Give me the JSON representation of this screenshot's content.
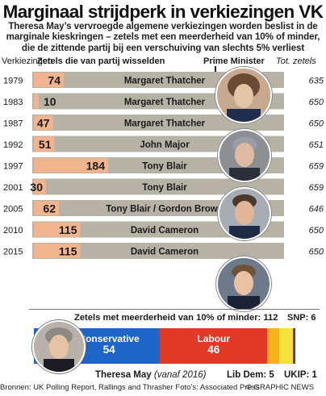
{
  "title": "Marginaal strijdperk in verkiezingen VK",
  "subtitle_lines": [
    "Theresa May’s vervroegde algemene verkiezingen worden beslist in de",
    "marginale kieskringen – zetels met een meerderheid van 10% of minder,",
    "die de zittende partij bij een verschuiving van slechts 5% verliest"
  ],
  "headers": {
    "elections": "Verkiezingen",
    "seats_changed": "Zetels die van partij wisselden",
    "pm": "Prime Minister",
    "total": "Tot. zetels"
  },
  "colors": {
    "bar_track": "#b6b3a6",
    "bar_fill": "#f0b48e",
    "conservative": "#1f64c8",
    "labour": "#e23a25",
    "libdem": "#f6b21b",
    "snp": "#f6e03a",
    "ukip": "#7a2a8c"
  },
  "chart_data": {
    "type": "bar",
    "categories": [
      "1979",
      "1983",
      "1987",
      "1992",
      "1997",
      "2001",
      "2005",
      "2010",
      "2015"
    ],
    "values": [
      74,
      10,
      47,
      51,
      184,
      30,
      62,
      115,
      115
    ],
    "prime_ministers": [
      "Margaret Thatcher",
      "Margaret Thatcher",
      "Margaret Thatcher",
      "John Major",
      "Tony Blair",
      "Tony Blair",
      "Tony Blair / Gordon Brown",
      "David Cameron",
      "David Cameron"
    ],
    "totals": [
      "635",
      "650",
      "650",
      "651",
      "659",
      "659",
      "646",
      "650",
      "650"
    ],
    "xlim": [
      0,
      400
    ]
  },
  "marginal": {
    "label": "Zetels met meerderheid van 10% of minder:",
    "total": "112",
    "segments": [
      {
        "party": "Conservative",
        "seats": 54,
        "label": "Conservative",
        "value_label": "54"
      },
      {
        "party": "Labour",
        "seats": 46,
        "label": "Labour",
        "value_label": "46"
      },
      {
        "party": "Lib Dem",
        "seats": 5,
        "label": "Lib Dem:",
        "value_label": "5"
      },
      {
        "party": "SNP",
        "seats": 6,
        "label": "SNP:",
        "value_label": "6"
      },
      {
        "party": "UKIP",
        "seats": 1,
        "label": "UKIP:",
        "value_label": "1"
      }
    ]
  },
  "theresa": {
    "name": "Theresa May",
    "since": "(vanaf 2016)"
  },
  "footer": {
    "source": "Bronnen: UK Polling Report, Rallings and Thrasher   Foto’s: Associated Press",
    "credit": "© GRAPHIC NEWS"
  }
}
